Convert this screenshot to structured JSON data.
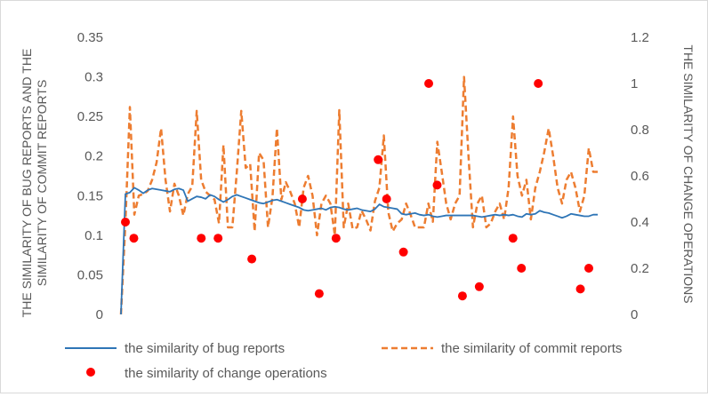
{
  "chart_data": {
    "type": "line",
    "title": "",
    "y_left_label": "THE SIMILARITY OF BUG REPORTS AND THE SIMILARITY OF COMMIT REPORTS",
    "y_left_label_lines": [
      "THE SIMILARITY OF BUG REPORTS AND THE",
      "SIMILARITY OF COMMIT REPORTS"
    ],
    "y_right_label": "THE SIMILARITY OF CHANGE OPERATIONS",
    "y_left_range": [
      0,
      0.35
    ],
    "y_left_ticks": [
      "0",
      "0.05",
      "0.1",
      "0.15",
      "0.2",
      "0.25",
      "0.3",
      "0.35"
    ],
    "y_right_range": [
      0,
      1.2
    ],
    "y_right_ticks": [
      "0",
      "0.2",
      "0.4",
      "0.6",
      "0.8",
      "1",
      "1.2"
    ],
    "x_ticks_visible": false,
    "gridlines": false,
    "legend_position": "bottom",
    "x": [
      1,
      2,
      3,
      4,
      5,
      6,
      7,
      8,
      9,
      10,
      11,
      12,
      13,
      14,
      15,
      16,
      17,
      18,
      19,
      20,
      21,
      22,
      23,
      24,
      25,
      26,
      27,
      28,
      29,
      30,
      31,
      32,
      33,
      34,
      35,
      36,
      37,
      38,
      39,
      40,
      41,
      42,
      43,
      44,
      45,
      46,
      47,
      48,
      49,
      50,
      51,
      52,
      53,
      54,
      55,
      56,
      57,
      58,
      59,
      60,
      61,
      62,
      63,
      64,
      65,
      66,
      67,
      68,
      69,
      70,
      71,
      72,
      73,
      74,
      75,
      76,
      77,
      78,
      79,
      80,
      81,
      82,
      83,
      84,
      85,
      86,
      87,
      88,
      89,
      90,
      91,
      92,
      93,
      94,
      95,
      96,
      97,
      98,
      99,
      100,
      101,
      102,
      103,
      104,
      105,
      106,
      107,
      108
    ],
    "series": [
      {
        "name": "the similarity of bug reports",
        "axis": "left",
        "style": "solid",
        "color": "#2e75b6",
        "values": [
          0,
          0.152,
          0.154,
          0.16,
          0.157,
          0.153,
          0.157,
          0.159,
          0.158,
          0.157,
          0.156,
          0.155,
          0.158,
          0.159,
          0.157,
          0.143,
          0.146,
          0.149,
          0.148,
          0.146,
          0.151,
          0.149,
          0.145,
          0.142,
          0.145,
          0.149,
          0.151,
          0.149,
          0.147,
          0.145,
          0.143,
          0.141,
          0.14,
          0.142,
          0.144,
          0.145,
          0.143,
          0.141,
          0.139,
          0.137,
          0.135,
          0.132,
          0.131,
          0.132,
          0.133,
          0.134,
          0.132,
          0.135,
          0.136,
          0.135,
          0.133,
          0.132,
          0.133,
          0.134,
          0.132,
          0.131,
          0.13,
          0.133,
          0.139,
          0.136,
          0.135,
          0.134,
          0.133,
          0.127,
          0.126,
          0.127,
          0.128,
          0.126,
          0.125,
          0.126,
          0.124,
          0.123,
          0.124,
          0.125,
          0.125,
          0.125,
          0.125,
          0.125,
          0.125,
          0.125,
          0.124,
          0.123,
          0.124,
          0.125,
          0.126,
          0.125,
          0.126,
          0.125,
          0.126,
          0.124,
          0.123,
          0.127,
          0.126,
          0.127,
          0.131,
          0.129,
          0.128,
          0.126,
          0.124,
          0.122,
          0.124,
          0.127,
          0.126,
          0.125,
          0.124,
          0.124,
          0.126,
          0.126
        ]
      },
      {
        "name": "the similarity of commit reports",
        "axis": "left",
        "style": "dashed",
        "color": "#ed7d31",
        "values": [
          0,
          0.116,
          0.262,
          0.126,
          0.15,
          0.152,
          0.156,
          0.17,
          0.192,
          0.235,
          0.17,
          0.13,
          0.165,
          0.15,
          0.125,
          0.152,
          0.162,
          0.257,
          0.17,
          0.155,
          0.15,
          0.145,
          0.115,
          0.214,
          0.11,
          0.11,
          0.18,
          0.257,
          0.185,
          0.19,
          0.105,
          0.204,
          0.195,
          0.11,
          0.148,
          0.235,
          0.145,
          0.167,
          0.155,
          0.14,
          0.11,
          0.16,
          0.175,
          0.15,
          0.1,
          0.14,
          0.15,
          0.14,
          0.1,
          0.258,
          0.11,
          0.14,
          0.108,
          0.11,
          0.131,
          0.12,
          0.106,
          0.143,
          0.16,
          0.226,
          0.129,
          0.105,
          0.115,
          0.12,
          0.14,
          0.126,
          0.11,
          0.11,
          0.11,
          0.14,
          0.117,
          0.218,
          0.18,
          0.14,
          0.12,
          0.14,
          0.15,
          0.3,
          0.2,
          0.11,
          0.14,
          0.15,
          0.11,
          0.115,
          0.13,
          0.14,
          0.12,
          0.16,
          0.25,
          0.175,
          0.15,
          0.17,
          0.12,
          0.16,
          0.18,
          0.205,
          0.235,
          0.2,
          0.16,
          0.14,
          0.17,
          0.18,
          0.16,
          0.13,
          0.15,
          0.21,
          0.18,
          0.18
        ]
      },
      {
        "name": "the similarity of change operations",
        "axis": "right",
        "style": "markers",
        "color": "#ff0000",
        "points": [
          [
            1,
            0.4
          ],
          [
            2,
            0.33
          ],
          [
            10,
            0.33
          ],
          [
            12,
            0.33
          ],
          [
            16,
            0.24
          ],
          [
            22,
            0.5
          ],
          [
            24,
            0.09
          ],
          [
            26,
            0.33
          ],
          [
            31,
            0.67
          ],
          [
            32,
            0.5
          ],
          [
            34,
            0.27
          ],
          [
            37,
            1.0
          ],
          [
            38,
            0.56
          ],
          [
            41,
            0.08
          ],
          [
            43,
            0.12
          ],
          [
            47,
            0.33
          ],
          [
            48,
            0.2
          ],
          [
            50,
            1.0
          ],
          [
            55,
            0.11
          ],
          [
            56,
            0.2
          ]
        ]
      }
    ]
  }
}
